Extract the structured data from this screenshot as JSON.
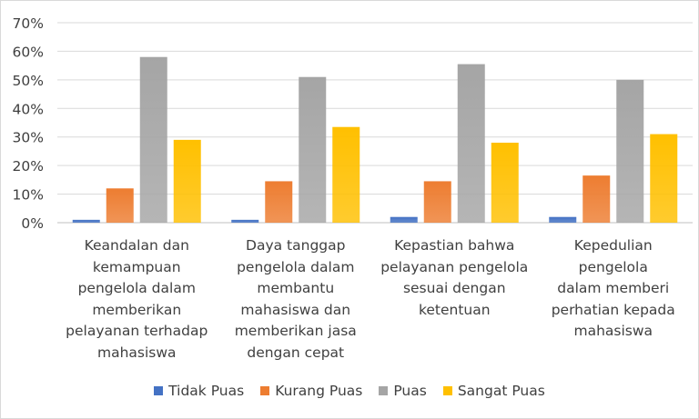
{
  "chart_data": {
    "type": "bar",
    "categories": [
      "Keandalan dan kemampuan pengelola dalam memberikan pelayanan terhadap mahasiswa",
      "Daya tanggap pengelola dalam membantu mahasiswa dan memberikan jasa dengan cepat",
      "Kepastian bahwa pelayanan pengelola sesuai dengan ketentuan",
      "Kepedulian pengelola dalam memberi perhatian kepada mahasiswa"
    ],
    "category_lines": [
      [
        "Keandalan dan",
        "kemampuan",
        "pengelola dalam",
        "memberikan",
        "pelayanan terhadap",
        "mahasiswa"
      ],
      [
        "Daya tanggap",
        "pengelola dalam",
        "membantu",
        "mahasiswa dan",
        "memberikan jasa",
        "dengan cepat"
      ],
      [
        "Kepastian bahwa",
        "pelayanan pengelola",
        "sesuai dengan",
        "ketentuan"
      ],
      [
        "Kepedulian pengelola",
        "dalam memberi",
        "perhatian kepada",
        "mahasiswa"
      ]
    ],
    "series": [
      {
        "name": "Tidak Puas",
        "color": "#4472c4",
        "values": [
          1,
          1,
          2,
          2
        ]
      },
      {
        "name": "Kurang Puas",
        "color": "#ed7d31",
        "values": [
          12,
          14.5,
          14.5,
          16.5
        ]
      },
      {
        "name": "Puas",
        "color": "#a5a5a5",
        "values": [
          58,
          51,
          55.5,
          50
        ]
      },
      {
        "name": "Sangat Puas",
        "color": "#ffc000",
        "values": [
          29,
          33.5,
          28,
          31
        ]
      }
    ],
    "yticks": [
      "0%",
      "10%",
      "20%",
      "30%",
      "40%",
      "50%",
      "60%",
      "70%"
    ],
    "ylim": [
      0,
      70
    ],
    "grid": true,
    "legend_position": "bottom"
  }
}
